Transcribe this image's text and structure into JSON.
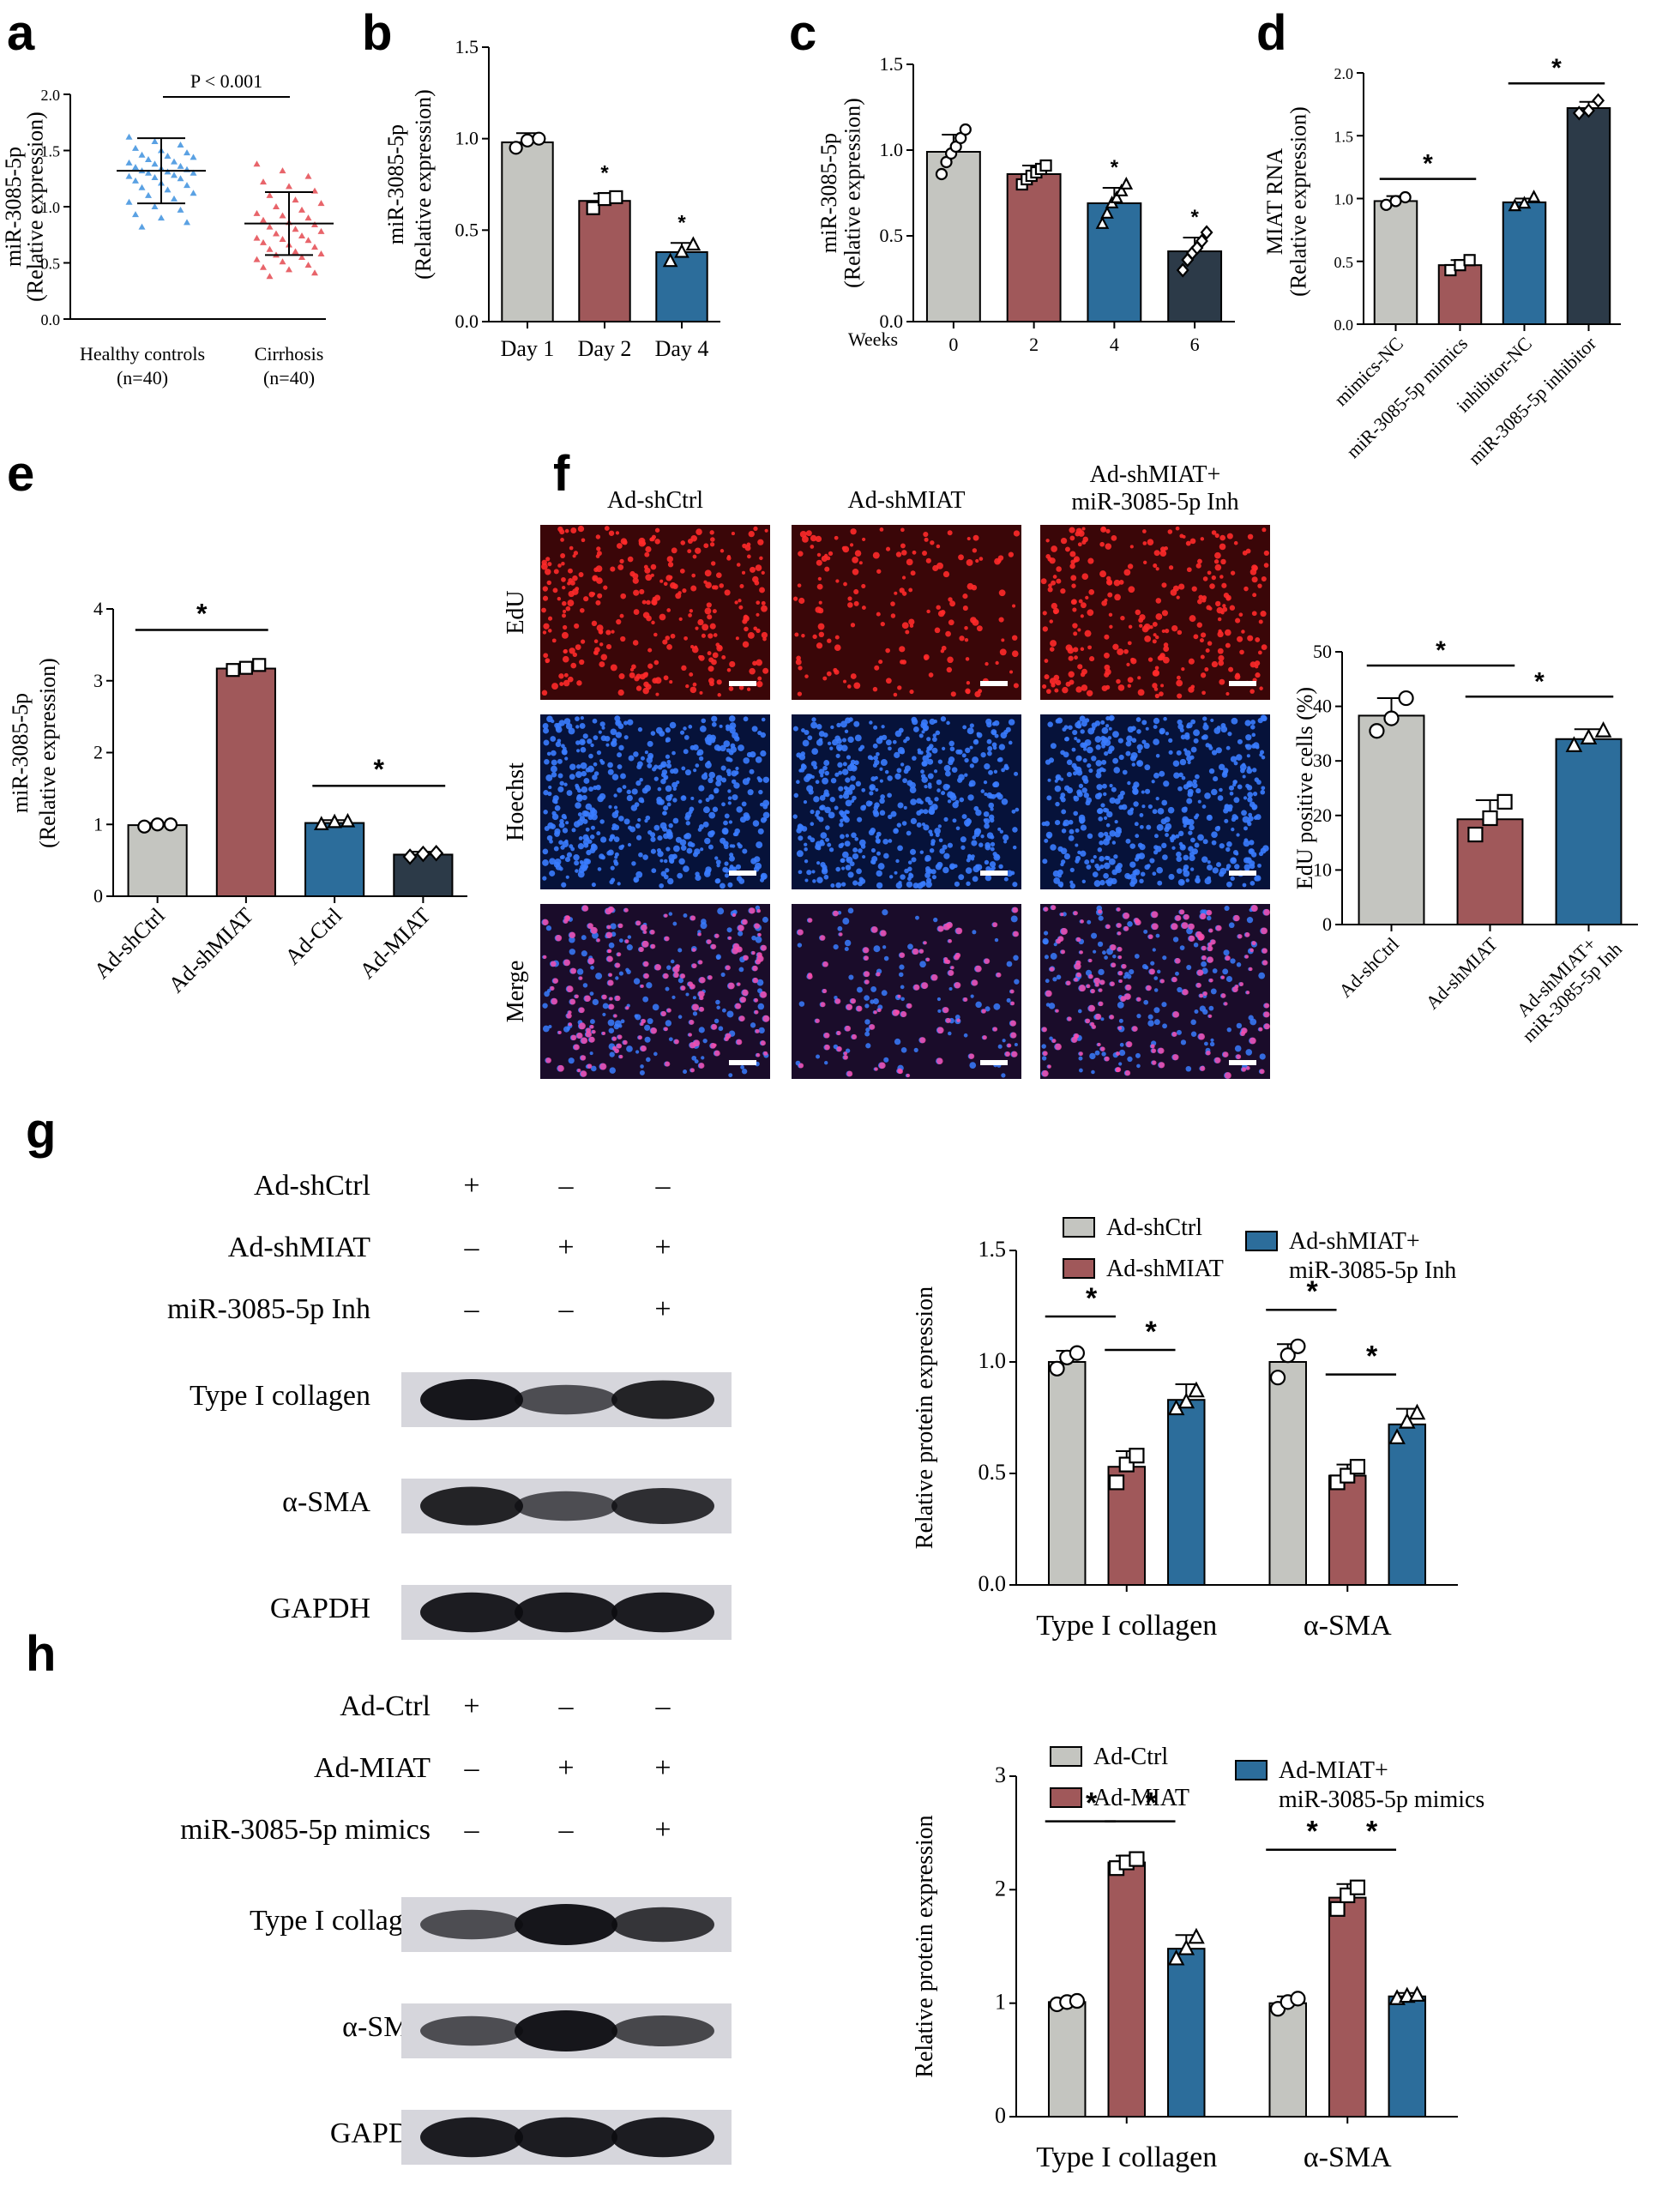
{
  "colors": {
    "gray": "#c4c5c0",
    "red": "#a0585a",
    "blue": "#2c6d9b",
    "dark": "#2c3a48",
    "scatter_blue": "#5aa1e3",
    "scatter_red": "#e8646a",
    "edu_bg": "#3a0608",
    "edu_dot": "#ff2a2a",
    "hoechst_bg": "#06123a",
    "hoechst_dot": "#3a7cff",
    "merge_dot": "#ff4aa8",
    "scalebar": "#ffffff"
  },
  "panel_labels": {
    "a": "a",
    "b": "b",
    "c": "c",
    "d": "d",
    "e": "e",
    "f": "f",
    "g": "g",
    "h": "h"
  },
  "chart_data": [
    {
      "id": "a",
      "type": "scatter",
      "categories": [
        "Healthy controls",
        "Cirrhosis"
      ],
      "category_sub": [
        "(n=40)",
        "(n=40)"
      ],
      "ylabel": "miR-3085-5p",
      "ylabel2": "(Relative expression)",
      "ylim": [
        0,
        2.0
      ],
      "yticks": [
        "0.0",
        "0.5",
        "1.0",
        "1.5",
        "2.0"
      ],
      "means": [
        1.32,
        0.85
      ],
      "sd": [
        0.29,
        0.28
      ],
      "series_values": [
        [
          1.62,
          1.58,
          1.55,
          1.52,
          1.5,
          1.48,
          1.46,
          1.45,
          1.44,
          1.42,
          1.4,
          1.39,
          1.38,
          1.36,
          1.35,
          1.34,
          1.33,
          1.32,
          1.31,
          1.3,
          1.3,
          1.28,
          1.27,
          1.26,
          1.25,
          1.23,
          1.21,
          1.19,
          1.17,
          1.15,
          1.12,
          1.1,
          1.07,
          1.04,
          1.0,
          0.97,
          0.93,
          0.9,
          0.86,
          0.82
        ],
        [
          1.38,
          1.32,
          1.27,
          1.22,
          1.18,
          1.14,
          1.1,
          1.06,
          1.03,
          1.0,
          0.97,
          0.94,
          0.92,
          0.9,
          0.88,
          0.86,
          0.84,
          0.82,
          0.8,
          0.78,
          0.76,
          0.74,
          0.72,
          0.71,
          0.7,
          0.68,
          0.66,
          0.64,
          0.62,
          0.6,
          0.58,
          0.57,
          0.55,
          0.53,
          0.51,
          0.48,
          0.46,
          0.44,
          0.41,
          0.38
        ]
      ],
      "significance": "P < 0.001"
    },
    {
      "id": "b",
      "type": "bar",
      "categories": [
        "Day 1",
        "Day 2",
        "Day 4"
      ],
      "values": [
        0.98,
        0.66,
        0.38
      ],
      "errors": [
        0.05,
        0.04,
        0.05
      ],
      "points": [
        [
          0.95,
          0.99,
          1.0
        ],
        [
          0.62,
          0.67,
          0.68
        ],
        [
          0.33,
          0.38,
          0.42
        ]
      ],
      "ylabel": "miR-3085-5p",
      "ylabel2": "(Relative expression)",
      "ylim": [
        0,
        1.5
      ],
      "yticks": [
        "0.0",
        "0.5",
        "1.0",
        "1.5"
      ],
      "stars": [
        "",
        "*",
        "*"
      ]
    },
    {
      "id": "c",
      "type": "bar",
      "categories": [
        "0",
        "2",
        "4",
        "6"
      ],
      "xlabel": "Weeks",
      "values": [
        0.99,
        0.86,
        0.69,
        0.41
      ],
      "errors": [
        0.1,
        0.05,
        0.09,
        0.08
      ],
      "points": [
        [
          0.86,
          0.93,
          0.98,
          1.02,
          1.07,
          1.12
        ],
        [
          0.8,
          0.83,
          0.85,
          0.87,
          0.89,
          0.91
        ],
        [
          0.57,
          0.63,
          0.69,
          0.72,
          0.76,
          0.8
        ],
        [
          0.3,
          0.36,
          0.4,
          0.43,
          0.47,
          0.52
        ]
      ],
      "ylabel": "miR-3085-5p",
      "ylabel2": "(Relative expression)",
      "ylim": [
        0,
        1.5
      ],
      "yticks": [
        "0.0",
        "0.5",
        "1.0",
        "1.5"
      ],
      "stars": [
        "",
        "",
        "*",
        "*"
      ]
    },
    {
      "id": "d",
      "type": "bar",
      "categories": [
        "mimics-NC",
        "miR-3085-5p mimics",
        "inhibitor-NC",
        "miR-3085-5p inhibitor"
      ],
      "values": [
        0.98,
        0.47,
        0.97,
        1.72
      ],
      "errors": [
        0.04,
        0.04,
        0.03,
        0.05
      ],
      "points": [
        [
          0.95,
          0.98,
          1.01
        ],
        [
          0.43,
          0.47,
          0.51
        ],
        [
          0.94,
          0.96,
          1.01
        ],
        [
          1.68,
          1.7,
          1.78
        ]
      ],
      "ylabel": "MIAT RNA",
      "ylabel2": "(Relative expression)",
      "ylim": [
        0,
        2.0
      ],
      "yticks": [
        "0.0",
        "0.5",
        "1.0",
        "1.5",
        "2.0"
      ],
      "brackets": [
        [
          0,
          1,
          "*"
        ],
        [
          2,
          3,
          "*"
        ]
      ]
    },
    {
      "id": "e",
      "type": "bar",
      "categories": [
        "Ad-shCtrl",
        "Ad-shMIAT",
        "Ad-Ctrl",
        "Ad-MIAT"
      ],
      "values": [
        0.99,
        3.17,
        1.02,
        0.58
      ],
      "errors": [
        0.03,
        0.06,
        0.04,
        0.04
      ],
      "points": [
        [
          0.97,
          1.0,
          1.0
        ],
        [
          3.15,
          3.18,
          3.22
        ],
        [
          1.0,
          1.03,
          1.04
        ],
        [
          0.55,
          0.59,
          0.6
        ]
      ],
      "ylabel": "miR-3085-5p",
      "ylabel2": "(Relative expression)",
      "ylim": [
        0,
        4
      ],
      "yticks": [
        "0",
        "1",
        "2",
        "3",
        "4"
      ],
      "brackets": [
        [
          0,
          1,
          "*"
        ],
        [
          2,
          3,
          "*"
        ]
      ]
    },
    {
      "id": "f",
      "type": "bar",
      "categories": [
        "Ad-shCtrl",
        "Ad-shMIAT",
        "Ad-shMIAT+\nmiR-3085-5p Inh"
      ],
      "values": [
        38.3,
        19.3,
        34.0
      ],
      "errors": [
        3.2,
        3.5,
        1.8
      ],
      "points": [
        [
          35.5,
          37.8,
          41.5
        ],
        [
          16.5,
          19.5,
          22.5
        ],
        [
          32.8,
          34.2,
          35.5
        ]
      ],
      "ylabel": "EdU positive cells (%)",
      "ylim": [
        0,
        50
      ],
      "yticks": [
        "0",
        "10",
        "20",
        "30",
        "40",
        "50"
      ],
      "brackets": [
        [
          0,
          1,
          "*"
        ],
        [
          1,
          2,
          "*"
        ]
      ]
    },
    {
      "id": "g",
      "type": "bar",
      "categories": [
        "Type I collagen",
        "α-SMA"
      ],
      "series": [
        {
          "name": "Ad-shCtrl",
          "values": [
            1.0,
            1.0
          ],
          "errors": [
            0.05,
            0.08
          ],
          "points": [
            [
              0.97,
              1.02,
              1.04
            ],
            [
              0.93,
              1.03,
              1.07
            ]
          ]
        },
        {
          "name": "Ad-shMIAT",
          "values": [
            0.53,
            0.49
          ],
          "errors": [
            0.07,
            0.05
          ],
          "points": [
            [
              0.46,
              0.54,
              0.58
            ],
            [
              0.46,
              0.49,
              0.53
            ]
          ]
        },
        {
          "name": "Ad-shMIAT+\nmiR-3085-5p Inh",
          "values": [
            0.83,
            0.72
          ],
          "errors": [
            0.07,
            0.07
          ],
          "points": [
            [
              0.79,
              0.82,
              0.87
            ],
            [
              0.66,
              0.73,
              0.77
            ]
          ]
        }
      ],
      "ylabel": "Relative protein expression",
      "ylim": [
        0,
        1.5
      ],
      "yticks": [
        "0.0",
        "0.5",
        "1.0",
        "1.5"
      ],
      "brackets": [
        [
          0,
          0,
          1,
          "*"
        ],
        [
          0,
          1,
          2,
          "*"
        ],
        [
          1,
          0,
          1,
          "*"
        ],
        [
          1,
          1,
          2,
          "*"
        ]
      ]
    },
    {
      "id": "h",
      "type": "bar",
      "categories": [
        "Type I collagen",
        "α-SMA"
      ],
      "series": [
        {
          "name": "Ad-Ctrl",
          "values": [
            1.01,
            1.0
          ],
          "errors": [
            0.02,
            0.06
          ],
          "points": [
            [
              0.99,
              1.01,
              1.02
            ],
            [
              0.95,
              1.01,
              1.04
            ]
          ]
        },
        {
          "name": "Ad-MIAT",
          "values": [
            2.24,
            1.93
          ],
          "errors": [
            0.06,
            0.12
          ],
          "points": [
            [
              2.19,
              2.24,
              2.27
            ],
            [
              1.83,
              1.95,
              2.02
            ]
          ]
        },
        {
          "name": "Ad-MIAT+\nmiR-3085-5p mimics",
          "values": [
            1.48,
            1.06
          ],
          "errors": [
            0.12,
            0.03
          ],
          "points": [
            [
              1.39,
              1.48,
              1.58
            ],
            [
              1.04,
              1.06,
              1.07
            ]
          ]
        }
      ],
      "ylabel": "Relative protein expression",
      "ylim": [
        0,
        3
      ],
      "yticks": [
        "0",
        "1",
        "2",
        "3"
      ],
      "brackets": [
        [
          0,
          0,
          1,
          "*"
        ],
        [
          0,
          1,
          2,
          "*"
        ],
        [
          1,
          0,
          1,
          "*"
        ],
        [
          1,
          1,
          2,
          "*"
        ]
      ]
    }
  ],
  "microscopy": {
    "columns": [
      "Ad-shCtrl",
      "Ad-shMIAT",
      "Ad-shMIAT+\nmiR-3085-5p Inh"
    ],
    "rows": [
      "EdU",
      "Hoechst",
      "Merge"
    ],
    "dot_density": [
      [
        1.0,
        0.55,
        0.95
      ],
      [
        1.0,
        1.0,
        1.0
      ],
      [
        1.0,
        0.55,
        0.95
      ]
    ]
  },
  "blot_g": {
    "conditions": [
      {
        "label": "Ad-shCtrl",
        "signs": [
          "+",
          "–",
          "–"
        ]
      },
      {
        "label": "Ad-shMIAT",
        "signs": [
          "–",
          "+",
          "+"
        ]
      },
      {
        "label": "miR-3085-5p Inh",
        "signs": [
          "–",
          "–",
          "+"
        ]
      }
    ],
    "bands": [
      {
        "label": "Type I collagen",
        "intensity": [
          1.0,
          0.55,
          0.9
        ]
      },
      {
        "label": "α-SMA",
        "intensity": [
          0.9,
          0.55,
          0.8
        ]
      },
      {
        "label": "GAPDH",
        "intensity": [
          0.95,
          0.95,
          0.95
        ]
      }
    ]
  },
  "blot_h": {
    "conditions": [
      {
        "label": "Ad-Ctrl",
        "signs": [
          "+",
          "–",
          "–"
        ]
      },
      {
        "label": "Ad-MIAT",
        "signs": [
          "–",
          "+",
          "+"
        ]
      },
      {
        "label": "miR-3085-5p mimics",
        "signs": [
          "–",
          "–",
          "+"
        ]
      }
    ],
    "bands": [
      {
        "label": "Type I collagen",
        "intensity": [
          0.55,
          1.0,
          0.75
        ]
      },
      {
        "label": "α-SMA",
        "intensity": [
          0.55,
          1.0,
          0.6
        ]
      },
      {
        "label": "GAPDH",
        "intensity": [
          0.95,
          0.95,
          0.95
        ]
      }
    ]
  }
}
